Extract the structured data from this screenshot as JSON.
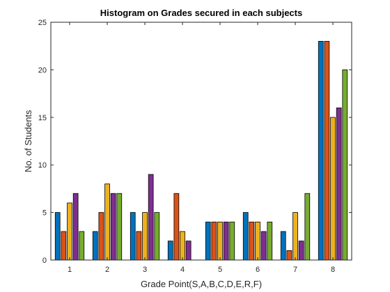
{
  "chart_data": {
    "type": "bar",
    "title": "Histogram on Grades secured in each subjects",
    "xlabel": "Grade Point(S,A,B,C,D,E,R,F)",
    "ylabel": "No. of Students",
    "categories": [
      "1",
      "2",
      "3",
      "4",
      "5",
      "6",
      "7",
      "8"
    ],
    "ylim": [
      0,
      25
    ],
    "yticks": [
      0,
      5,
      10,
      15,
      20,
      25
    ],
    "grid": false,
    "legend": "none",
    "series": [
      {
        "color": "#0072BD",
        "values": [
          5,
          3,
          5,
          2,
          4,
          5,
          3,
          23
        ]
      },
      {
        "color": "#D95319",
        "values": [
          3,
          5,
          3,
          7,
          4,
          4,
          1,
          23
        ]
      },
      {
        "color": "#EDB120",
        "values": [
          6,
          8,
          5,
          3,
          4,
          4,
          5,
          15
        ]
      },
      {
        "color": "#7E2F8E",
        "values": [
          7,
          7,
          9,
          2,
          4,
          3,
          2,
          16
        ]
      },
      {
        "color": "#77AC30",
        "values": [
          3,
          7,
          5,
          0,
          4,
          4,
          7,
          20
        ]
      }
    ]
  }
}
